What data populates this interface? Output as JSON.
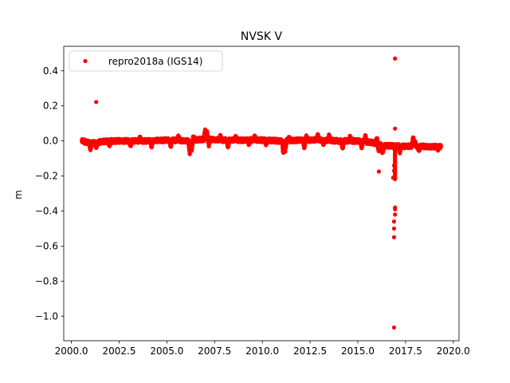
{
  "chart_data": {
    "type": "scatter",
    "title": "NVSK V",
    "xlabel": "",
    "ylabel": "m",
    "xlim": [
      1999.6,
      2020.3
    ],
    "ylim": [
      -1.14,
      0.54
    ],
    "x_ticks": [
      2000.0,
      2002.5,
      2005.0,
      2007.5,
      2010.0,
      2012.5,
      2015.0,
      2017.5,
      2020.0
    ],
    "x_tick_labels": [
      "2000.0",
      "2002.5",
      "2005.0",
      "2007.5",
      "2010.0",
      "2012.5",
      "2015.0",
      "2017.5",
      "2020.0"
    ],
    "y_ticks": [
      0.4,
      0.2,
      0.0,
      -0.2,
      -0.4,
      -0.6,
      -0.8,
      -1.0
    ],
    "y_tick_labels": [
      "0.4",
      "0.2",
      "0.0",
      "−0.2",
      "−0.4",
      "−0.6",
      "−0.8",
      "−1.0"
    ],
    "grid": false,
    "legend_position": "top-left",
    "colors": {
      "series": "#ff0000"
    },
    "series": [
      {
        "name": "repro2018a (IGS14)",
        "marker": "circle",
        "trend": [
          [
            2000.55,
            0.0
          ],
          [
            2001.0,
            -0.012
          ],
          [
            2002.0,
            0.0
          ],
          [
            2003.0,
            0.0
          ],
          [
            2004.0,
            0.0
          ],
          [
            2005.0,
            0.005
          ],
          [
            2006.0,
            0.0
          ],
          [
            2007.0,
            0.01
          ],
          [
            2008.0,
            0.005
          ],
          [
            2009.0,
            0.005
          ],
          [
            2010.0,
            0.005
          ],
          [
            2011.0,
            0.0
          ],
          [
            2012.0,
            0.005
          ],
          [
            2013.0,
            0.005
          ],
          [
            2014.0,
            0.0
          ],
          [
            2015.0,
            0.0
          ],
          [
            2015.8,
            -0.01
          ],
          [
            2016.2,
            -0.025
          ],
          [
            2017.0,
            -0.03
          ],
          [
            2018.0,
            -0.03
          ],
          [
            2019.0,
            -0.033
          ],
          [
            2019.35,
            -0.033
          ]
        ],
        "dips": [
          [
            2001.0,
            -0.05
          ],
          [
            2001.3,
            -0.045
          ],
          [
            2002.0,
            -0.035
          ],
          [
            2003.1,
            -0.04
          ],
          [
            2004.2,
            -0.035
          ],
          [
            2005.2,
            -0.035
          ],
          [
            2006.2,
            -0.085
          ],
          [
            2006.3,
            -0.06
          ],
          [
            2007.2,
            -0.025
          ],
          [
            2008.2,
            -0.04
          ],
          [
            2009.3,
            -0.025
          ],
          [
            2010.2,
            -0.025
          ],
          [
            2011.1,
            -0.08
          ],
          [
            2011.2,
            -0.06
          ],
          [
            2012.2,
            -0.045
          ],
          [
            2013.2,
            -0.025
          ],
          [
            2014.2,
            -0.05
          ],
          [
            2015.2,
            -0.045
          ],
          [
            2016.1,
            -0.06
          ],
          [
            2016.3,
            -0.08
          ],
          [
            2017.2,
            -0.065
          ],
          [
            2018.2,
            -0.06
          ],
          [
            2019.2,
            -0.05
          ]
        ],
        "peaks": [
          [
            2003.6,
            0.02
          ],
          [
            2005.6,
            0.03
          ],
          [
            2006.4,
            0.025
          ],
          [
            2007.0,
            0.065
          ],
          [
            2007.1,
            0.055
          ],
          [
            2007.8,
            0.035
          ],
          [
            2008.6,
            0.025
          ],
          [
            2009.6,
            0.03
          ],
          [
            2011.4,
            0.025
          ],
          [
            2012.3,
            0.03
          ],
          [
            2012.9,
            0.04
          ],
          [
            2013.5,
            0.035
          ],
          [
            2014.6,
            0.03
          ],
          [
            2015.4,
            0.035
          ],
          [
            2016.0,
            0.02
          ],
          [
            2017.9,
            0.03
          ],
          [
            2018.0,
            0.0
          ]
        ],
        "outliers": [
          [
            2001.3,
            0.222
          ],
          [
            2016.95,
            0.47
          ],
          [
            2016.95,
            0.07
          ],
          [
            2016.1,
            -0.175
          ],
          [
            2016.85,
            -0.21
          ],
          [
            2016.9,
            -0.17
          ],
          [
            2016.95,
            -0.09
          ],
          [
            2016.95,
            -0.12
          ],
          [
            2016.9,
            -0.14
          ],
          [
            2016.95,
            -0.38
          ],
          [
            2016.95,
            -0.39
          ],
          [
            2016.95,
            -0.42
          ],
          [
            2016.9,
            -0.46
          ],
          [
            2016.9,
            -0.5
          ],
          [
            2016.9,
            -0.55
          ],
          [
            2016.9,
            -1.065
          ]
        ]
      }
    ]
  }
}
